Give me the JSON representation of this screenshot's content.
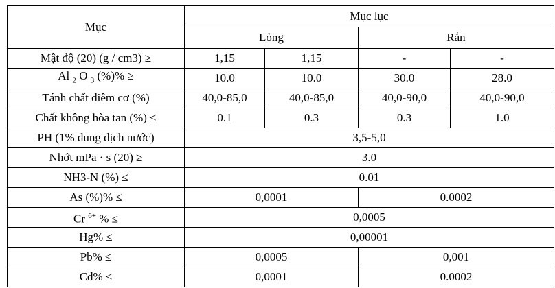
{
  "header": {
    "item": "Mục",
    "index": "Mục lục",
    "liquid": "Lỏng",
    "solid": "Rắn"
  },
  "rows": [
    {
      "label": "Mật độ (20) (g / cm3) ≥",
      "values": [
        "1,15",
        "1,15",
        "-",
        "-"
      ]
    },
    {
      "label": [
        "Al ",
        "2",
        " O ",
        "3",
        " (%)% ≥"
      ],
      "values": [
        "10.0",
        "10.0",
        "30.0",
        "28.0"
      ]
    },
    {
      "label": "Tánh chất diêm cơ (%)",
      "values": [
        "40,0-85,0",
        "40,0-85,0",
        "40,0-90,0",
        "40,0-90,0"
      ]
    },
    {
      "label": "Chất không hòa tan (%) ≤",
      "values": [
        "0.1",
        "0.3",
        "0.3",
        "1.0"
      ]
    },
    {
      "label": "PH (1% dung dịch nước)",
      "values": [
        "3,5-5,0"
      ]
    },
    {
      "label": "Nhớt mPa · s (20) ≥",
      "values": [
        "3.0"
      ]
    },
    {
      "label": "NH3-N (%) ≤",
      "values": [
        "0.01"
      ]
    },
    {
      "label": "As (%)% ≤",
      "values": [
        "0,0001",
        "0.0002"
      ]
    },
    {
      "label": [
        "Cr ",
        "6+",
        " % ≤"
      ],
      "values": [
        "0,0005"
      ]
    },
    {
      "label": "Hg% ≤",
      "values": [
        "0,00001"
      ]
    },
    {
      "label": "Pb% ≤",
      "values": [
        "0,0005",
        "0,001"
      ]
    },
    {
      "label": "Cd% ≤",
      "values": [
        "0,0001",
        "0.0002"
      ]
    }
  ]
}
